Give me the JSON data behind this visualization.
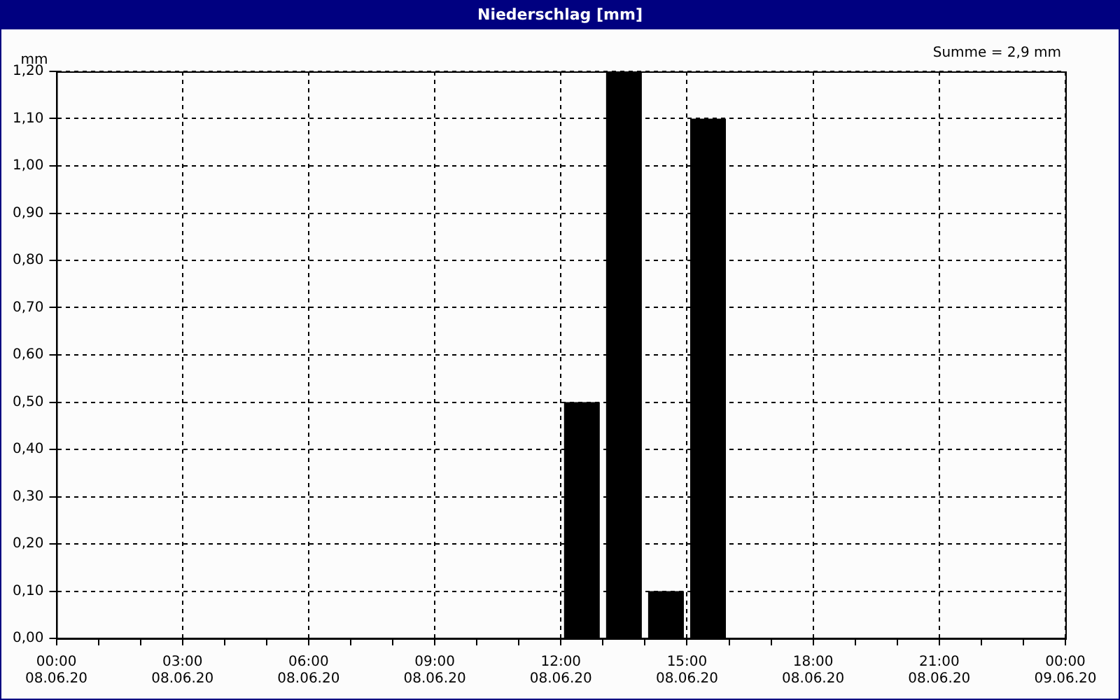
{
  "chart_data": {
    "type": "bar",
    "title": "Niederschlag [mm]",
    "ylabel": "mm",
    "annotations": [
      "Summe = 2,9 mm"
    ],
    "x": [
      "--06-08T12:30",
      "--06-08T13:30",
      "--06-08T14:30",
      "--06-08T15:30"
    ],
    "series": [
      {
        "color": "#000000",
        "values": [
          0.5,
          1.2,
          0.1,
          1.1
        ]
      }
    ],
    "xlim": [
      "--06-08T00:00",
      "--06-09T00:00"
    ],
    "xticks": [
      {
        "value": "--06-08T00:00",
        "label": "00:00\n08.06.20"
      },
      {
        "value": "--06-08T01:00",
        "label": null
      },
      {
        "value": "--06-08T02:00",
        "label": null
      },
      {
        "value": "--06-08T03:00",
        "label": "03:00\n08.06.20"
      },
      {
        "value": "--06-08T04:00",
        "label": null
      },
      {
        "value": "--06-08T05:00",
        "label": null
      },
      {
        "value": "--06-08T06:00",
        "label": "06:00\n08.06.20"
      },
      {
        "value": "--06-08T07:00",
        "label": null
      },
      {
        "value": "--06-08T08:00",
        "label": null
      },
      {
        "value": "--06-08T09:00",
        "label": "09:00\n08.06.20"
      },
      {
        "value": "--06-08T10:00",
        "label": null
      },
      {
        "value": "--06-08T11:00",
        "label": null
      },
      {
        "value": "--06-08T12:00",
        "label": "12:00\n08.06.20"
      },
      {
        "value": "--06-08T13:00",
        "label": null
      },
      {
        "value": "--06-08T14:00",
        "label": null
      },
      {
        "value": "--06-08T15:00",
        "label": "15:00\n08.06.20"
      },
      {
        "value": "--06-08T16:00",
        "label": null
      },
      {
        "value": "--06-08T17:00",
        "label": null
      },
      {
        "value": "--06-08T18:00",
        "label": "18:00\n08.06.20"
      },
      {
        "value": "--06-08T19:00",
        "label": null
      },
      {
        "value": "--06-08T20:00",
        "label": null
      },
      {
        "value": "--06-08T21:00",
        "label": "21:00\n08.06.20"
      },
      {
        "value": "--06-08T22:00",
        "label": null
      },
      {
        "value": "--06-08T23:00",
        "label": null
      },
      {
        "value": "--06-09T00:00",
        "label": "00:00\n09.06.20"
      }
    ],
    "ylim": [
      0,
      1.2
    ],
    "yticks": [
      {
        "value": 0,
        "label": "0,00"
      },
      {
        "value": 0.1,
        "label": "0,10"
      },
      {
        "value": 0.2,
        "label": "0,20"
      },
      {
        "value": 0.3,
        "label": "0,30"
      },
      {
        "value": 0.4,
        "label": "0,40"
      },
      {
        "value": 0.5,
        "label": "0,50"
      },
      {
        "value": 0.6,
        "label": "0,60"
      },
      {
        "value": 0.7,
        "label": "0,70"
      },
      {
        "value": 0.8,
        "label": "0,80"
      },
      {
        "value": 0.9,
        "label": "0,90"
      },
      {
        "value": 1,
        "label": "1,00"
      },
      {
        "value": 1.1,
        "label": "1,10"
      },
      {
        "value": 1.2,
        "label": "1,20"
      }
    ],
    "grid": true,
    "legend": false
  }
}
